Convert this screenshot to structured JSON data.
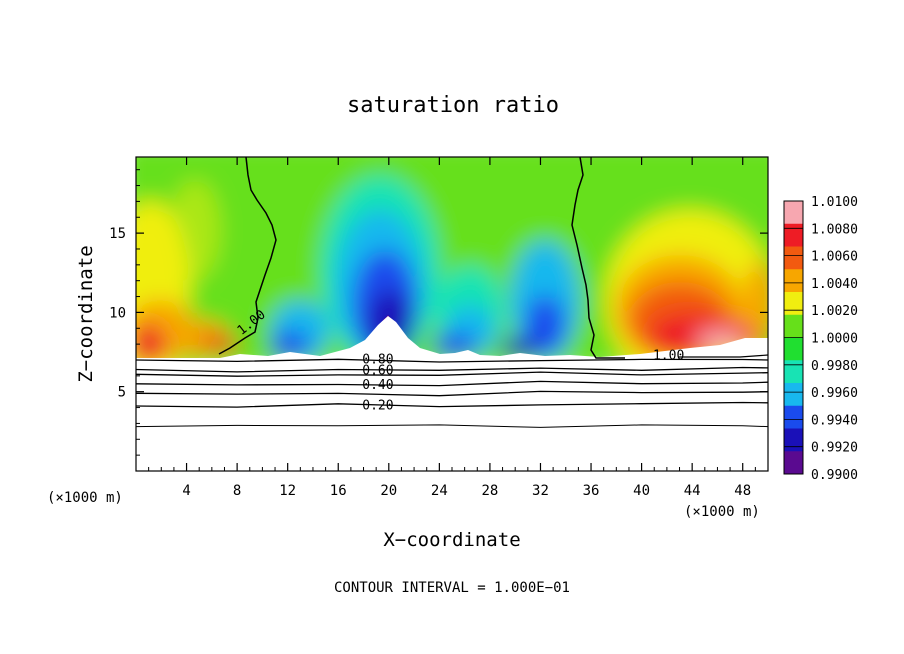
{
  "chart_data": {
    "type": "heatmap",
    "title": "saturation ratio",
    "xlabel": "X−coordinate",
    "ylabel": "Z−coordinate",
    "x_unit": "(×1000 m)",
    "x_unit_right": "(×1000 m)",
    "xlim": [
      0,
      50
    ],
    "ylim": [
      0,
      19.8
    ],
    "x_ticks": [
      4,
      8,
      12,
      16,
      20,
      24,
      28,
      32,
      36,
      40,
      44,
      48
    ],
    "y_ticks": [
      5,
      10,
      15
    ],
    "note": "CONTOUR INTERVAL = 1.000E−01",
    "colorbar": {
      "levels": [
        "1.0100",
        "1.0080",
        "1.0060",
        "1.0040",
        "1.0020",
        "1.0000",
        "0.9980",
        "0.9960",
        "0.9940",
        "0.9920",
        "0.9900"
      ],
      "colors": [
        "#f7a7b0",
        "#ee1c25",
        "#f25a10",
        "#f7a600",
        "#f0ee10",
        "#66e01a",
        "#20df30",
        "#18e3b4",
        "#18b8ee",
        "#1a4bed",
        "#1a10b8",
        "#5a0a90"
      ]
    },
    "contour_labels": [
      {
        "text": "1.00",
        "x": 8.1,
        "z": 8.8,
        "rot": -38
      },
      {
        "text": "1.00",
        "x": 40.9,
        "z": 7.35,
        "rot": 0
      },
      {
        "text": "0.80",
        "x": 17.9,
        "z": 7.1,
        "rot": 0
      },
      {
        "text": "0.60",
        "x": 17.9,
        "z": 6.4,
        "rot": 0
      },
      {
        "text": "0.40",
        "x": 17.9,
        "z": 5.5,
        "rot": 0
      },
      {
        "text": "0.20",
        "x": 17.9,
        "z": 4.2,
        "rot": 0
      }
    ],
    "contour_lines": [
      {
        "level": 0.8,
        "x": [
          0,
          8,
          16,
          24,
          32,
          40,
          48,
          50
        ],
        "z": [
          7.0,
          6.9,
          7.0,
          6.9,
          7.0,
          7.0,
          7.0,
          7.0
        ]
      },
      {
        "level": 0.6,
        "x": [
          0,
          8,
          16,
          24,
          32,
          40,
          48,
          50
        ],
        "z": [
          6.4,
          6.3,
          6.4,
          6.3,
          6.5,
          6.4,
          6.5,
          6.5
        ]
      },
      {
        "level": 0.5,
        "x": [
          0,
          8,
          16,
          24,
          32,
          40,
          48,
          50
        ],
        "z": [
          6.1,
          6.0,
          6.1,
          6.0,
          6.2,
          6.1,
          6.2,
          6.2
        ]
      },
      {
        "level": 0.4,
        "x": [
          0,
          8,
          16,
          24,
          32,
          40,
          48,
          50
        ],
        "z": [
          5.5,
          5.4,
          5.5,
          5.4,
          5.6,
          5.5,
          5.6,
          5.6
        ]
      },
      {
        "level": 0.3,
        "x": [
          0,
          8,
          16,
          24,
          32,
          40,
          48,
          50
        ],
        "z": [
          4.9,
          4.8,
          4.9,
          4.8,
          5.0,
          4.9,
          5.0,
          5.0
        ]
      },
      {
        "level": 0.2,
        "x": [
          0,
          8,
          16,
          24,
          32,
          40,
          48,
          50
        ],
        "z": [
          4.1,
          4.0,
          4.2,
          4.1,
          4.2,
          4.2,
          4.3,
          4.3
        ]
      },
      {
        "level": 0.1,
        "x": [
          0,
          8,
          16,
          24,
          32,
          40,
          48,
          50
        ],
        "z": [
          2.8,
          2.9,
          2.8,
          2.9,
          2.8,
          2.9,
          2.8,
          2.8
        ]
      }
    ]
  }
}
